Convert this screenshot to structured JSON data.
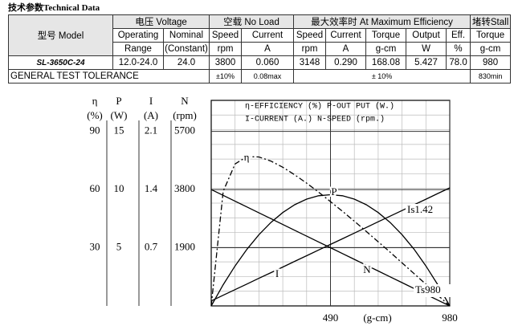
{
  "header": {
    "title": "技术参数Technical Data"
  },
  "table": {
    "header_rows": [
      [
        "型号 Model",
        "电压 Voltage",
        "空载 No Load",
        "最大效率时 At Maximum Efficiency",
        "堵转Stall"
      ],
      [
        "Operating",
        "Nominal",
        "Speed",
        "Current",
        "Speed",
        "Current",
        "Torque",
        "Output",
        "Eff.",
        "Torque"
      ],
      [
        "Range",
        "(Constant)",
        "rpm",
        "A",
        "rpm",
        "A",
        "g-cm",
        "W",
        "%",
        "g-cm"
      ]
    ],
    "data_row": [
      "SL-3650C-24",
      "12.0-24.0",
      "24.0",
      "3800",
      "0.060",
      "3148",
      "0.290",
      "168.08",
      "5.427",
      "78.0",
      "980"
    ],
    "tolerance_row": [
      "GENERAL TEST TOLERANCE",
      "±10%",
      "0.08max",
      "± 10%",
      "830min"
    ]
  },
  "chart_data": {
    "type": "line",
    "legend_lines": [
      "η-EFFICIENCY (%) P-OUT PUT (W.)",
      "I-CURRENT (A.) N-SPEED (rpm.)"
    ],
    "x_label": "(g-cm)",
    "xlim": [
      0,
      980
    ],
    "xticks": [
      490,
      980
    ],
    "axes": [
      {
        "label": "η",
        "unit": "(%)",
        "ylim": [
          0,
          106
        ],
        "yticks": [
          30,
          60,
          90
        ]
      },
      {
        "label": "P",
        "unit": "(W)",
        "ylim": [
          0,
          17.67
        ],
        "yticks": [
          5,
          10,
          15
        ]
      },
      {
        "label": "I",
        "unit": "(A)",
        "ylim": [
          0,
          2.473
        ],
        "yticks": [
          0.7,
          1.4,
          2.1
        ]
      },
      {
        "label": "N",
        "unit": "(rpm)",
        "ylim": [
          0,
          6713
        ],
        "yticks": [
          1900,
          3800,
          5700
        ]
      }
    ],
    "x": [
      0,
      49,
      98,
      147,
      196,
      245,
      294,
      343,
      392,
      441,
      490,
      539,
      588,
      637,
      686,
      735,
      784,
      833,
      882,
      931,
      980
    ],
    "series": [
      {
        "name": "η",
        "axis": 0,
        "color": "#000000",
        "style": "dashdot",
        "values": [
          0,
          59.1,
          73.2,
          77.0,
          76.8,
          74.7,
          71.5,
          67.6,
          63.3,
          58.7,
          53.8,
          48.8,
          43.7,
          38.4,
          33.1,
          27.7,
          22.2,
          16.7,
          11.2,
          5.6,
          0
        ]
      },
      {
        "name": "P",
        "axis": 1,
        "color": "#000000",
        "style": "solid",
        "values": [
          0,
          1.82,
          3.44,
          4.88,
          6.12,
          7.17,
          8.03,
          8.7,
          9.18,
          9.47,
          9.56,
          9.47,
          9.18,
          8.7,
          8.03,
          7.17,
          6.12,
          4.88,
          3.44,
          1.82,
          0
        ]
      },
      {
        "name": "I",
        "axis": 2,
        "color": "#000000",
        "style": "solid",
        "values": [
          0.06,
          0.128,
          0.196,
          0.264,
          0.332,
          0.4,
          0.468,
          0.536,
          0.604,
          0.672,
          0.74,
          0.808,
          0.876,
          0.944,
          1.012,
          1.08,
          1.148,
          1.216,
          1.284,
          1.352,
          1.42
        ]
      },
      {
        "name": "N",
        "axis": 3,
        "color": "#000000",
        "style": "solid",
        "values": [
          3800,
          3610,
          3420,
          3230,
          3040,
          2850,
          2660,
          2470,
          2280,
          2090,
          1900,
          1710,
          1520,
          1330,
          1140,
          950,
          760,
          570,
          380,
          190,
          0
        ]
      }
    ],
    "annotations": [
      "Is1.42",
      "Ts980"
    ]
  }
}
